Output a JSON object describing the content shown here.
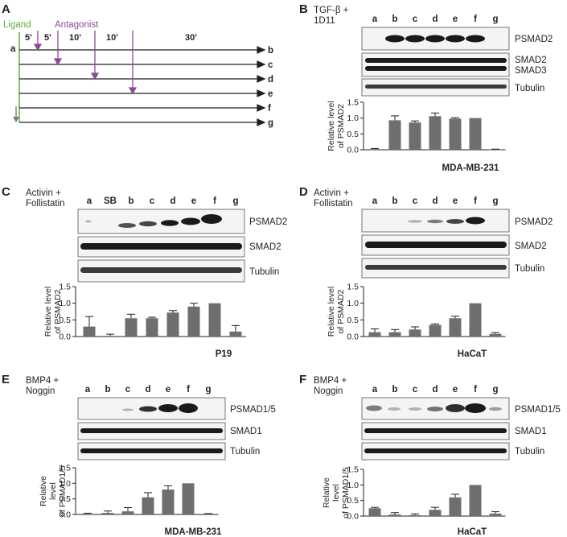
{
  "panel_a": {
    "letter": "A",
    "ligand_label": "Ligand",
    "antagonist_label": "Antagonist",
    "start_label": "a",
    "intervals": [
      "5'",
      "5'",
      "10'",
      "10'",
      "30'"
    ],
    "rows": [
      "b",
      "c",
      "d",
      "e",
      "f",
      "g"
    ],
    "colors": {
      "ligand": "#5bae3b",
      "antagonist": "#8c4a96",
      "line": "#231f20",
      "arrow_grey": "#7a7a7a"
    }
  },
  "chart_data": [
    {
      "id": "B",
      "type": "bar",
      "letter": "B",
      "treatment": [
        "TGF-β +",
        "1D11"
      ],
      "categories": [
        "a",
        "b",
        "c",
        "d",
        "e",
        "f",
        "g"
      ],
      "values": [
        0.02,
        0.93,
        0.86,
        1.06,
        0.98,
        1.0,
        0.01
      ],
      "errors": [
        0.02,
        0.14,
        0.05,
        0.1,
        0.03,
        0.0,
        0.01
      ],
      "ylim": [
        0,
        1.5
      ],
      "yticks": [
        "0.0",
        "0.5",
        "1.0",
        "1.5"
      ],
      "ylabel": [
        "Relative level",
        "of PSMAD2"
      ],
      "cell_line": "MDA-MB-231",
      "blots": [
        "PSMAD2",
        "SMAD2\nSMAD3",
        "Tubulin"
      ],
      "bar_color": "#6d6e70"
    },
    {
      "id": "C",
      "type": "bar",
      "letter": "C",
      "treatment": [
        "Activin +",
        "Follistatin"
      ],
      "categories": [
        "a",
        "SB",
        "b",
        "c",
        "d",
        "e",
        "f",
        "g"
      ],
      "values": [
        0.3,
        0.02,
        0.55,
        0.55,
        0.72,
        0.9,
        1.0,
        0.15
      ],
      "errors": [
        0.3,
        0.05,
        0.12,
        0.03,
        0.06,
        0.1,
        0.0,
        0.18
      ],
      "ylim": [
        0,
        1.5
      ],
      "yticks": [
        "0.0",
        "0.5",
        "1.0",
        "1.5"
      ],
      "ylabel": [
        "Relative level",
        "of PSMAD2"
      ],
      "cell_line": "P19",
      "blots": [
        "PSMAD2",
        "SMAD2",
        "Tubulin"
      ],
      "bar_color": "#6d6e70"
    },
    {
      "id": "D",
      "type": "bar",
      "letter": "D",
      "treatment": [
        "Activin +",
        "Follistatin"
      ],
      "categories": [
        "a",
        "b",
        "c",
        "d",
        "e",
        "f",
        "g"
      ],
      "values": [
        0.13,
        0.13,
        0.21,
        0.35,
        0.55,
        1.0,
        0.08
      ],
      "errors": [
        0.1,
        0.08,
        0.08,
        0.03,
        0.06,
        0.0,
        0.04
      ],
      "ylim": [
        0,
        1.5
      ],
      "yticks": [
        "0.0",
        "0.5",
        "1.0",
        "1.5"
      ],
      "ylabel": [
        "Relative level",
        "of PSMAD2"
      ],
      "cell_line": "HaCaT",
      "blots": [
        "PSMAD2",
        "SMAD2",
        "Tubulin"
      ],
      "bar_color": "#6d6e70"
    },
    {
      "id": "E",
      "type": "bar",
      "letter": "E",
      "treatment": [
        "BMP4 +",
        "Noggin"
      ],
      "categories": [
        "a",
        "b",
        "c",
        "d",
        "e",
        "f",
        "g"
      ],
      "values": [
        0.02,
        0.05,
        0.1,
        0.55,
        0.8,
        1.0,
        0.02
      ],
      "errors": [
        0.02,
        0.06,
        0.12,
        0.15,
        0.12,
        0.0,
        0.01
      ],
      "ylim": [
        0,
        1.5
      ],
      "yticks": [
        "0.0",
        "0.5",
        "1.0",
        "1.5"
      ],
      "ylabel": [
        "Relative",
        "level",
        "of PSMAD1/5"
      ],
      "cell_line": "MDA-MB-231",
      "blots": [
        "PSMAD1/5",
        "SMAD1",
        "Tubulin"
      ],
      "bar_color": "#6d6e70"
    },
    {
      "id": "F",
      "type": "bar",
      "letter": "F",
      "treatment": [
        "BMP4 +",
        "Noggin"
      ],
      "categories": [
        "a",
        "b",
        "c",
        "d",
        "e",
        "f",
        "g"
      ],
      "values": [
        0.25,
        0.05,
        0.03,
        0.2,
        0.6,
        1.0,
        0.08
      ],
      "errors": [
        0.03,
        0.06,
        0.04,
        0.08,
        0.1,
        0.0,
        0.06
      ],
      "ylim": [
        0,
        1.5
      ],
      "yticks": [
        "0.0",
        "0.5",
        "1.0",
        "1.5"
      ],
      "ylabel": [
        "Relative",
        "level",
        "of PSMAD1/5"
      ],
      "cell_line": "HaCaT",
      "blots": [
        "PSMAD1/5",
        "SMAD1",
        "Tubulin"
      ],
      "bar_color": "#6d6e70"
    }
  ]
}
